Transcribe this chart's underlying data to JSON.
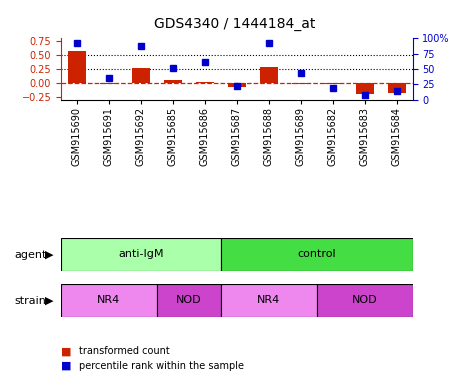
{
  "title": "GDS4340 / 1444184_at",
  "samples": [
    "GSM915690",
    "GSM915691",
    "GSM915692",
    "GSM915685",
    "GSM915686",
    "GSM915687",
    "GSM915688",
    "GSM915689",
    "GSM915682",
    "GSM915683",
    "GSM915684"
  ],
  "transformed_count": [
    0.58,
    -0.02,
    0.27,
    0.05,
    0.02,
    -0.07,
    0.29,
    -0.01,
    -0.01,
    -0.2,
    -0.18
  ],
  "percentile_rank": [
    92,
    35,
    88,
    52,
    62,
    23,
    93,
    43,
    20,
    8,
    15
  ],
  "ylim_left": [
    -0.3,
    0.8
  ],
  "ylim_right": [
    0,
    100
  ],
  "yticks_left": [
    -0.25,
    0.0,
    0.25,
    0.5,
    0.75
  ],
  "yticks_right": [
    0,
    25,
    50,
    75,
    100
  ],
  "ytick_labels_right": [
    "0",
    "25",
    "50",
    "75",
    "100%"
  ],
  "hlines": [
    0.5,
    0.25
  ],
  "bar_color": "#cc2200",
  "dot_color": "#0000cc",
  "dashed_line_color": "#cc2200",
  "agent_groups": [
    {
      "label": "anti-IgM",
      "start": 0,
      "end": 5,
      "color": "#aaffaa"
    },
    {
      "label": "control",
      "start": 5,
      "end": 11,
      "color": "#44dd44"
    }
  ],
  "strain_groups": [
    {
      "label": "NR4",
      "start": 0,
      "end": 3,
      "color": "#ee88ee"
    },
    {
      "label": "NOD",
      "start": 3,
      "end": 5,
      "color": "#cc44cc"
    },
    {
      "label": "NR4",
      "start": 5,
      "end": 8,
      "color": "#ee88ee"
    },
    {
      "label": "NOD",
      "start": 8,
      "end": 11,
      "color": "#cc44cc"
    }
  ],
  "legend_items": [
    {
      "label": "transformed count",
      "color": "#cc2200"
    },
    {
      "label": "percentile rank within the sample",
      "color": "#0000cc"
    }
  ],
  "tick_label_fontsize": 7,
  "row_label_fontsize": 8,
  "title_fontsize": 10,
  "axis_label_color_left": "#cc2200",
  "axis_label_color_right": "#0000cc",
  "background_color": "#ffffff"
}
